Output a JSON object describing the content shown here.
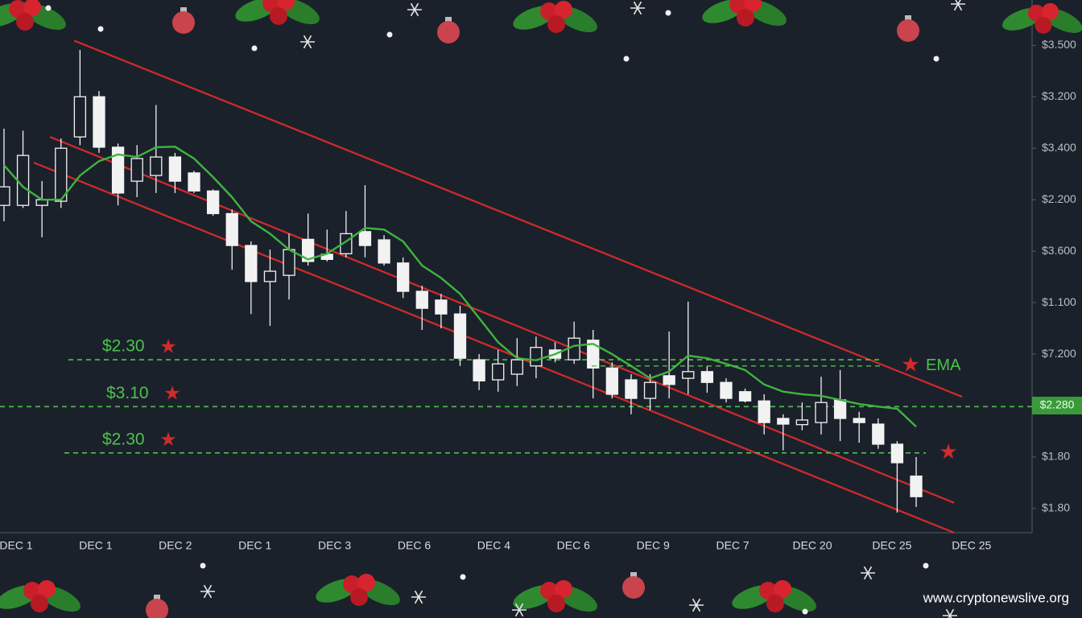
{
  "chart_data": {
    "type": "candlestick",
    "xlim": [
      -0.21,
      54.1
    ],
    "ylim": [
      -0.47,
      9.88
    ],
    "yticks": [
      {
        "value": 9,
        "label": "$3.500"
      },
      {
        "value": 8,
        "label": "$3.200"
      },
      {
        "value": 7,
        "label": "$3.400"
      },
      {
        "value": 6,
        "label": "$2.200"
      },
      {
        "value": 5,
        "label": "$3.600"
      },
      {
        "value": 4,
        "label": "$1.100"
      },
      {
        "value": 3,
        "label": "$7.200"
      },
      {
        "value": 2,
        "label": "$2.280"
      },
      {
        "value": 1,
        "label": "$1.80"
      },
      {
        "value": 0,
        "label": "$1.80"
      }
    ],
    "highlighted_ytick": 7,
    "xtick_labels": [
      "DEC 1",
      "DEC 1",
      "DEC 2",
      "DEC 1",
      "DEC 3",
      "DEC 6",
      "DEC 4",
      "DEC 6",
      "DEC 9",
      "DEC 7",
      "DEC 20",
      "DEC 25",
      "DEC 25"
    ],
    "candle_color": "#f2f2f2",
    "open": [
      5.89,
      5.89,
      5.89,
      5.97,
      7.22,
      8.0,
      7.02,
      6.36,
      6.47,
      6.83,
      6.52,
      6.17,
      5.73,
      5.11,
      4.41,
      4.53,
      5.23,
      4.94,
      4.95,
      5.38,
      5.22,
      4.77,
      4.22,
      4.05,
      3.78,
      2.89,
      2.5,
      2.61,
      2.77,
      3.08,
      2.89,
      3.27,
      2.73,
      2.5,
      2.14,
      2.58,
      2.53,
      2.66,
      2.45,
      2.27,
      2.09,
      1.75,
      1.63,
      1.67,
      2.11,
      1.75,
      1.64,
      1.25,
      0.63
    ],
    "close": [
      6.25,
      6.86,
      6.0,
      7.0,
      8.0,
      7.02,
      6.13,
      6.8,
      6.83,
      6.36,
      6.17,
      5.73,
      5.11,
      4.41,
      4.61,
      5.03,
      4.8,
      4.84,
      5.34,
      5.11,
      4.77,
      4.22,
      3.89,
      3.78,
      2.92,
      2.48,
      2.81,
      2.89,
      3.13,
      2.92,
      3.31,
      2.73,
      2.22,
      2.14,
      2.45,
      2.41,
      2.66,
      2.45,
      2.14,
      2.09,
      1.67,
      1.64,
      1.72,
      2.06,
      1.75,
      1.67,
      1.25,
      0.89,
      0.23
    ],
    "high": [
      7.38,
      7.34,
      6.36,
      7.19,
      8.91,
      8.11,
      7.09,
      7.06,
      7.84,
      6.91,
      6.56,
      6.2,
      5.81,
      5.19,
      5.03,
      5.34,
      5.73,
      5.42,
      5.78,
      6.28,
      5.31,
      4.88,
      4.33,
      4.17,
      3.94,
      3.0,
      3.08,
      3.31,
      3.34,
      3.23,
      3.63,
      3.47,
      2.84,
      2.61,
      2.61,
      3.44,
      4.02,
      2.77,
      2.53,
      2.33,
      2.22,
      1.83,
      2.06,
      2.56,
      2.69,
      1.88,
      1.75,
      1.31,
      1.0
    ],
    "low": [
      5.58,
      5.84,
      5.27,
      5.84,
      7.06,
      6.91,
      5.89,
      6.05,
      6.13,
      6.13,
      6.13,
      5.69,
      4.64,
      3.78,
      3.55,
      4.06,
      4.72,
      4.8,
      4.88,
      4.88,
      4.72,
      4.09,
      3.47,
      3.5,
      2.77,
      2.3,
      2.27,
      2.38,
      2.53,
      2.84,
      2.81,
      2.14,
      2.14,
      1.83,
      1.91,
      2.14,
      2.22,
      2.25,
      2.06,
      2.06,
      1.44,
      1.13,
      1.52,
      1.44,
      1.31,
      1.28,
      1.16,
      -0.08,
      0.03
    ],
    "ema": {
      "color": "#3fb43f",
      "values": [
        6.67,
        6.25,
        6.0,
        6.0,
        6.47,
        6.75,
        6.88,
        6.83,
        7.02,
        7.03,
        6.8,
        6.44,
        6.05,
        5.58,
        5.34,
        5.03,
        4.84,
        4.95,
        5.19,
        5.45,
        5.42,
        5.19,
        4.72,
        4.48,
        4.17,
        3.7,
        3.23,
        2.92,
        2.88,
        3.0,
        3.16,
        3.2,
        3.0,
        2.77,
        2.53,
        2.66,
        2.97,
        2.92,
        2.81,
        2.69,
        2.41,
        2.27,
        2.22,
        2.19,
        2.11,
        2.03,
        1.98,
        1.94,
        1.59
      ]
    },
    "trendline_color": "#d42a2a",
    "trendlines": [
      {
        "x": [
          3.69,
          50.42
        ],
        "y": [
          9.09,
          2.17
        ]
      },
      {
        "x": [
          2.42,
          50.0
        ],
        "y": [
          7.22,
          0.11
        ]
      },
      {
        "x": [
          1.57,
          50.0
        ],
        "y": [
          6.72,
          -0.47
        ]
      }
    ],
    "level_color": "#4cc24c",
    "levels": [
      {
        "label": "$2.30",
        "value": 2.89
      },
      {
        "label": "$3.10",
        "value": 1.98
      },
      {
        "label": "$2.30",
        "value": 1.08
      }
    ],
    "ema_label": {
      "text": "EMA",
      "value": 2.77
    }
  },
  "watermark": "www.cryptonewslive.org"
}
